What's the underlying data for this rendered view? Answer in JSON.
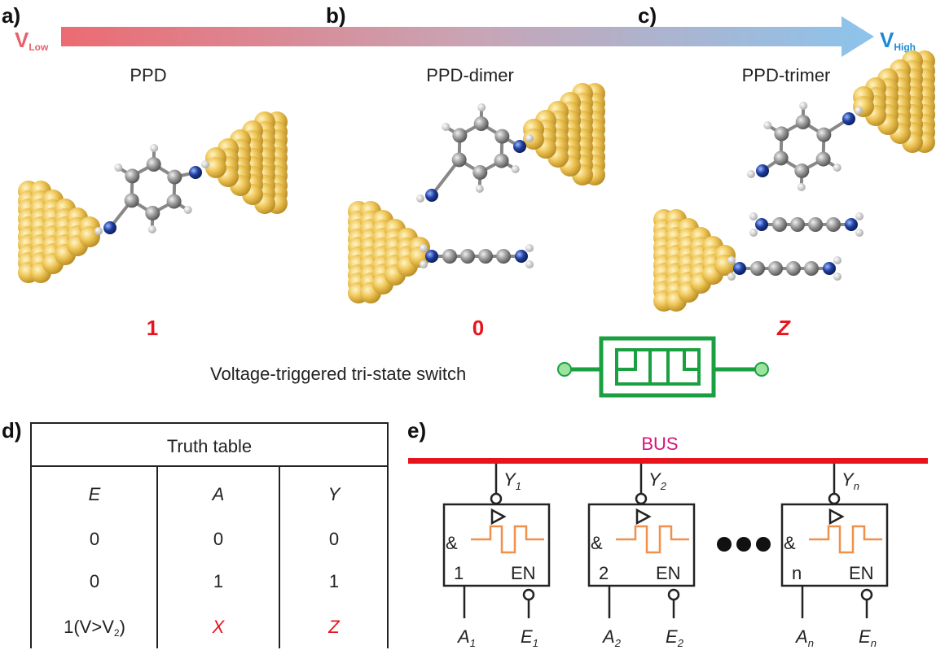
{
  "panels": {
    "a": "a)",
    "b": "b)",
    "c": "c)",
    "d": "d)",
    "e": "e)"
  },
  "arrow": {
    "low_v": "V",
    "low_sub": "Low",
    "high_v": "V",
    "high_sub": "High",
    "low_color": "#e8606a",
    "high_color": "#1a8ad4"
  },
  "structures": [
    {
      "name": "PPD",
      "state": "1"
    },
    {
      "name": "PPD-dimer",
      "state": "0"
    },
    {
      "name": "PPD-trimer",
      "state": "Z"
    }
  ],
  "switch_caption": "Voltage-triggered tri-state switch",
  "switch_color": "#1aa040",
  "truth_table": {
    "title": "Truth table",
    "headers": [
      "E",
      "A",
      "Y"
    ],
    "rows": [
      [
        "0",
        "0",
        "0"
      ],
      [
        "0",
        "1",
        "1"
      ],
      [
        "1(V>V",
        "X",
        "Z"
      ]
    ],
    "row3_sub": "2",
    "row3_tail": ")"
  },
  "bus": {
    "label": "BUS",
    "label_color": "#d4147a",
    "line_color": "#e8141c"
  },
  "gates": [
    {
      "index": "1",
      "en": "EN",
      "amp": "&",
      "y": "Y",
      "y_sub": "1",
      "a": "A",
      "a_sub": "1",
      "e": "E",
      "e_sub": "1"
    },
    {
      "index": "2",
      "en": "EN",
      "amp": "&",
      "y": "Y",
      "y_sub": "2",
      "a": "A",
      "a_sub": "2",
      "e": "E",
      "e_sub": "2"
    },
    {
      "index": "n",
      "en": "EN",
      "amp": "&",
      "y": "Y",
      "y_sub": "n",
      "a": "A",
      "a_sub": "n",
      "e": "E",
      "e_sub": "n"
    }
  ]
}
